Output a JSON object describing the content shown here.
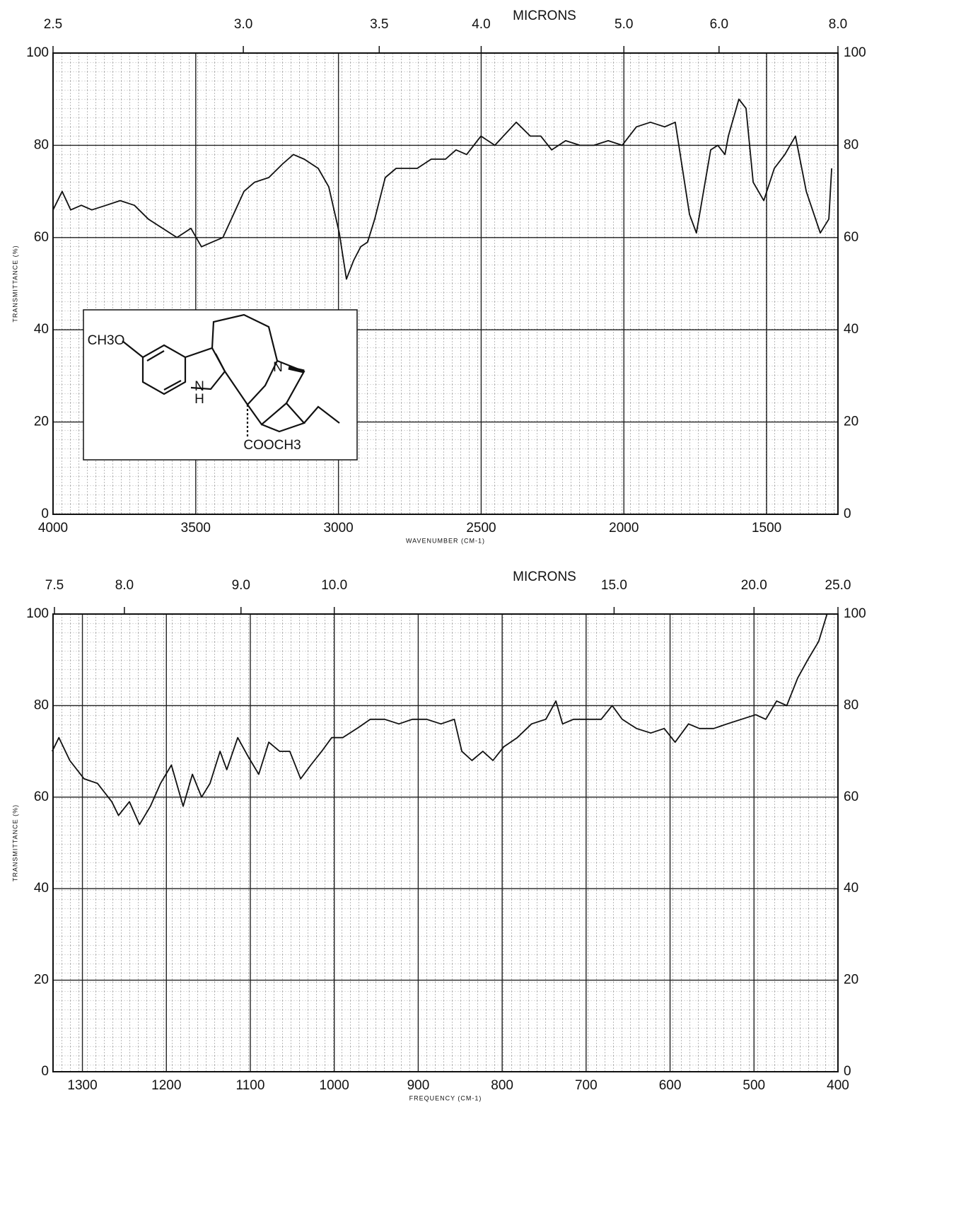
{
  "chart_data": [
    {
      "type": "line",
      "x2label": "MICRONS",
      "xlabel": "WAVENUMBER (CM-1)",
      "ylabel": "TRANSMITTANCE (%)",
      "xlim": [
        4000,
        1250
      ],
      "ylim": [
        0,
        100
      ],
      "xticks": [
        4000,
        3500,
        3000,
        2500,
        2000,
        1500
      ],
      "yticks": [
        0,
        20,
        40,
        60,
        80,
        100
      ],
      "x2ticks": [
        2.5,
        {
          "value": 3,
          "label": "3.0"
        },
        3.5,
        {
          "value": 4,
          "label": "4.0"
        },
        {
          "value": 5,
          "label": "5.0"
        },
        {
          "value": 6,
          "label": "6.0"
        },
        {
          "value": 8,
          "label": "8.0"
        }
      ],
      "grid": true,
      "color": "#111111",
      "annotations": [
        "CH3O",
        "N",
        "N",
        "H",
        "COOCH3"
      ],
      "x": [
        4000,
        3968,
        3938,
        3901,
        3864,
        3814,
        3765,
        3715,
        3666,
        3616,
        3566,
        3517,
        3480,
        3443,
        3405,
        3368,
        3331,
        3294,
        3244,
        3195,
        3158,
        3120,
        3071,
        3034,
        2997,
        2972,
        2947,
        2922,
        2898,
        2873,
        2836,
        2798,
        2761,
        2724,
        2675,
        2625,
        2588,
        2551,
        2501,
        2452,
        2377,
        2328,
        2291,
        2253,
        2204,
        2154,
        2105,
        2055,
        2006,
        1956,
        1907,
        1857,
        1820,
        1770,
        1746,
        1721,
        1696,
        1671,
        1646,
        1634,
        1597,
        1572,
        1547,
        1510,
        1473,
        1436,
        1399,
        1361,
        1312,
        1282,
        1272
      ],
      "values": [
        66,
        70,
        66,
        67,
        66,
        67,
        68,
        67,
        64,
        62,
        60,
        62,
        58,
        59,
        60,
        65,
        70,
        72,
        73,
        76,
        78,
        77,
        75,
        71,
        61,
        51,
        55,
        58,
        59,
        64,
        73,
        75,
        75,
        75,
        77,
        77,
        79,
        78,
        82,
        80,
        85,
        82,
        82,
        79,
        81,
        80,
        80,
        81,
        80,
        84,
        85,
        84,
        85,
        65,
        61,
        70,
        79,
        80,
        78,
        82,
        90,
        88,
        72,
        68,
        75,
        78,
        82,
        70,
        61,
        64,
        75
      ]
    },
    {
      "type": "line",
      "x2label": "MICRONS",
      "xlabel": "FREQUENCY (CM-1)",
      "ylabel": "TRANSMITTANCE (%)",
      "xlim": [
        1335,
        400
      ],
      "ylim": [
        0,
        100
      ],
      "xticks": [
        1300,
        1200,
        1100,
        1000,
        900,
        800,
        700,
        600,
        500,
        400
      ],
      "yticks": [
        0,
        20,
        40,
        60,
        80,
        100
      ],
      "x2ticks": [
        7.5,
        {
          "value": 8,
          "label": "8.0"
        },
        {
          "value": 9,
          "label": "9.0"
        },
        {
          "value": 10,
          "label": "10.0"
        },
        {
          "value": 15,
          "label": "15.0"
        },
        {
          "value": 20,
          "label": "20.0"
        },
        {
          "value": 25,
          "label": "25.0"
        }
      ],
      "grid": true,
      "color": "#111111",
      "x": [
        1336,
        1328,
        1315,
        1298,
        1282,
        1265,
        1257,
        1244,
        1232,
        1219,
        1207,
        1194,
        1180,
        1169,
        1158,
        1148,
        1136,
        1128,
        1115,
        1103,
        1090,
        1078,
        1065,
        1053,
        1040,
        1028,
        1015,
        1003,
        990,
        973,
        957,
        940,
        923,
        907,
        890,
        873,
        857,
        848,
        836,
        823,
        811,
        798,
        782,
        765,
        748,
        736,
        728,
        715,
        698,
        682,
        669,
        657,
        640,
        623,
        607,
        594,
        578,
        565,
        548,
        532,
        515,
        498,
        486,
        473,
        461,
        448,
        436,
        423,
        413
      ],
      "values": [
        70,
        73,
        68,
        64,
        63,
        59,
        56,
        59,
        54,
        58,
        63,
        67,
        58,
        65,
        60,
        63,
        70,
        66,
        73,
        69,
        65,
        72,
        70,
        70,
        64,
        67,
        70,
        73,
        73,
        75,
        77,
        77,
        76,
        77,
        77,
        76,
        77,
        70,
        68,
        70,
        68,
        71,
        73,
        76,
        77,
        81,
        76,
        77,
        77,
        77,
        80,
        77,
        75,
        74,
        75,
        72,
        76,
        75,
        75,
        76,
        77,
        78,
        77,
        81,
        80,
        86,
        90,
        94,
        100
      ]
    }
  ]
}
